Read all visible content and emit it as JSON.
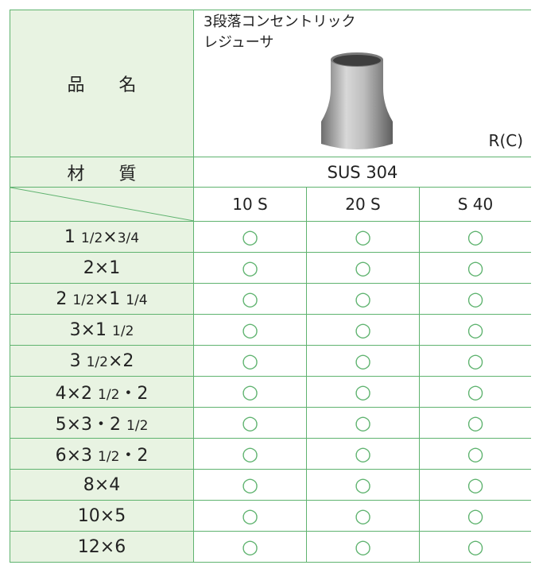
{
  "header": {
    "name_label": "品 名",
    "product_name": [
      "3段落コンセントリック",
      "レジューサ"
    ],
    "product_code": "R(C)"
  },
  "material": {
    "label": "材 質",
    "value": "SUS 304"
  },
  "schedules": [
    "10 S",
    "20 S",
    "S 40"
  ],
  "table": {
    "rows": [
      {
        "size": "1 1/2×3/4",
        "marks": [
          "○",
          "○",
          "○"
        ]
      },
      {
        "size": "2×1",
        "marks": [
          "○",
          "○",
          "○"
        ]
      },
      {
        "size": "2 1/2×1 1/4",
        "marks": [
          "○",
          "○",
          "○"
        ]
      },
      {
        "size": "3×1 1/2",
        "marks": [
          "○",
          "○",
          "○"
        ]
      },
      {
        "size": "3 1/2×2",
        "marks": [
          "○",
          "○",
          "○"
        ]
      },
      {
        "size": "4×2 1/2・2",
        "marks": [
          "○",
          "○",
          "○"
        ]
      },
      {
        "size": "5×3・2 1/2",
        "marks": [
          "○",
          "○",
          "○"
        ]
      },
      {
        "size": "6×3 1/2・2",
        "marks": [
          "○",
          "○",
          "○"
        ]
      },
      {
        "size": "8×4",
        "marks": [
          "○",
          "○",
          "○"
        ]
      },
      {
        "size": "10×5",
        "marks": [
          "○",
          "○",
          "○"
        ]
      },
      {
        "size": "12×6",
        "marks": [
          "○",
          "○",
          "○"
        ]
      }
    ]
  }
}
